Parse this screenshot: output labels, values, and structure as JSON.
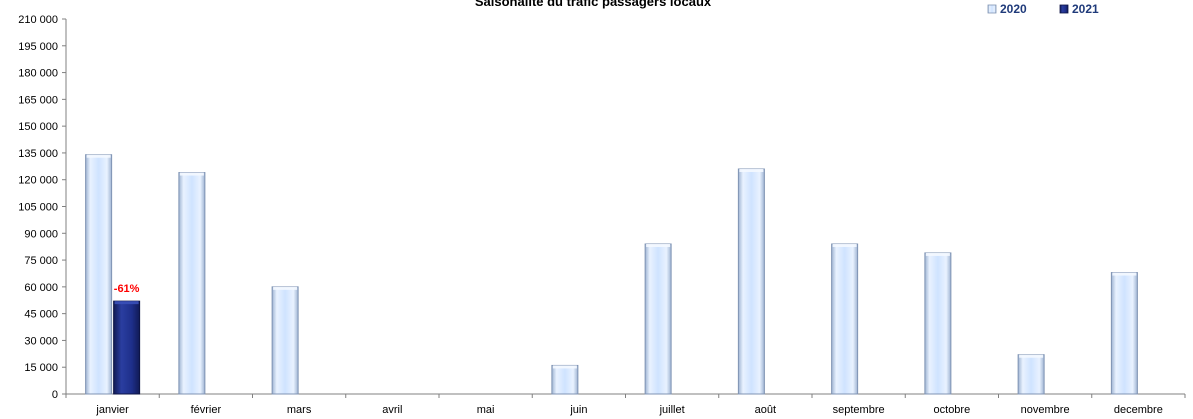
{
  "chart_data": {
    "type": "bar",
    "title": "Saisonalité du trafic passagers locaux",
    "categories": [
      "janvier",
      "février",
      "mars",
      "avril",
      "mai",
      "juin",
      "juillet",
      "août",
      "septembre",
      "octobre",
      "novembre",
      "decembre"
    ],
    "series": [
      {
        "name": "2020",
        "color": "#cfe3ff",
        "values": [
          134000,
          124000,
          60000,
          0,
          0,
          16000,
          84000,
          126000,
          84000,
          79000,
          22000,
          68000
        ]
      },
      {
        "name": "2021",
        "color": "#1e2f8a",
        "values": [
          52000,
          null,
          null,
          null,
          null,
          null,
          null,
          null,
          null,
          null,
          null,
          null
        ]
      }
    ],
    "ylim": [
      0,
      210000
    ],
    "yticks": [
      0,
      15000,
      30000,
      45000,
      60000,
      75000,
      90000,
      105000,
      120000,
      135000,
      150000,
      165000,
      180000,
      195000,
      210000
    ],
    "ytick_labels": [
      "0",
      "15 000",
      "30 000",
      "45 000",
      "60 000",
      "75 000",
      "90 000",
      "105 000",
      "120 000",
      "135 000",
      "150 000",
      "165 000",
      "180 000",
      "195 000",
      "210 000"
    ],
    "annotations": [
      {
        "series": "2021",
        "category": "janvier",
        "text": "-61%",
        "color": "#ff0000"
      }
    ],
    "legend_position": "top-right",
    "grid": false
  }
}
